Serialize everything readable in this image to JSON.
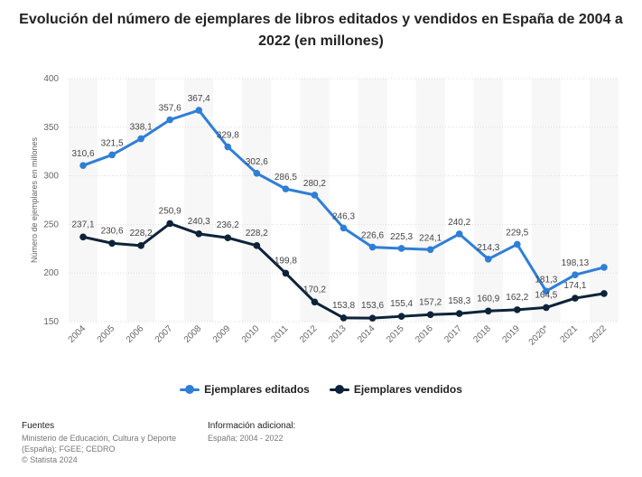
{
  "chart_data": {
    "type": "line",
    "title": "Evolución del número de ejemplares de libros editados y vendidos en España de 2004 a 2022 (en millones)",
    "ylabel": "Número de ejemplares en millones",
    "xlabel": "",
    "ylim": [
      150,
      400
    ],
    "yticks": [
      150,
      200,
      250,
      300,
      350,
      400
    ],
    "grid": true,
    "legend_position": "bottom",
    "categories": [
      "2004",
      "2005",
      "2006",
      "2007",
      "2008",
      "2009",
      "2010",
      "2011",
      "2012",
      "2013",
      "2014",
      "2015",
      "2016",
      "2017",
      "2018",
      "2019",
      "2020*",
      "2021",
      "2022"
    ],
    "series": [
      {
        "name": "Ejemplares editados",
        "color": "#2f7ed8",
        "values": [
          310.6,
          321.5,
          338.1,
          357.6,
          367.4,
          329.8,
          302.6,
          286.5,
          280.2,
          246.3,
          226.6,
          225.3,
          224.1,
          240.2,
          214.3,
          229.5,
          181.3,
          198.13,
          205.8
        ],
        "labels": [
          "310,6",
          "321,5",
          "338,1",
          "357,6",
          "367,4",
          "329,8",
          "302,6",
          "286,5",
          "280,2",
          "246,3",
          "226,6",
          "225,3",
          "224,1",
          "240,2",
          "214,3",
          "229,5",
          "181,3",
          "198,13",
          ""
        ]
      },
      {
        "name": "Ejemplares vendidos",
        "color": "#0d233a",
        "values": [
          237.1,
          230.6,
          228.2,
          250.9,
          240.3,
          236.2,
          228.2,
          199.8,
          170.2,
          153.8,
          153.6,
          155.4,
          157.2,
          158.3,
          160.9,
          162.2,
          164.5,
          174.1,
          178.9
        ],
        "labels": [
          "237,1",
          "230,6",
          "228,2",
          "250,9",
          "240,3",
          "236,2",
          "228,2",
          "199,8",
          "170,2",
          "153,8",
          "153,6",
          "155,4",
          "157,2",
          "158,3",
          "160,9",
          "162,2",
          "164,5",
          "174,1",
          ""
        ]
      }
    ]
  },
  "footer": {
    "sources_heading": "Fuentes",
    "sources_text": "Ministerio de Educación, Cultura y Deporte (España); FGEE; CEDRO",
    "copyright": "© Statista 2024",
    "info_heading": "Información adicional:",
    "info_text": "España; 2004 - 2022"
  }
}
